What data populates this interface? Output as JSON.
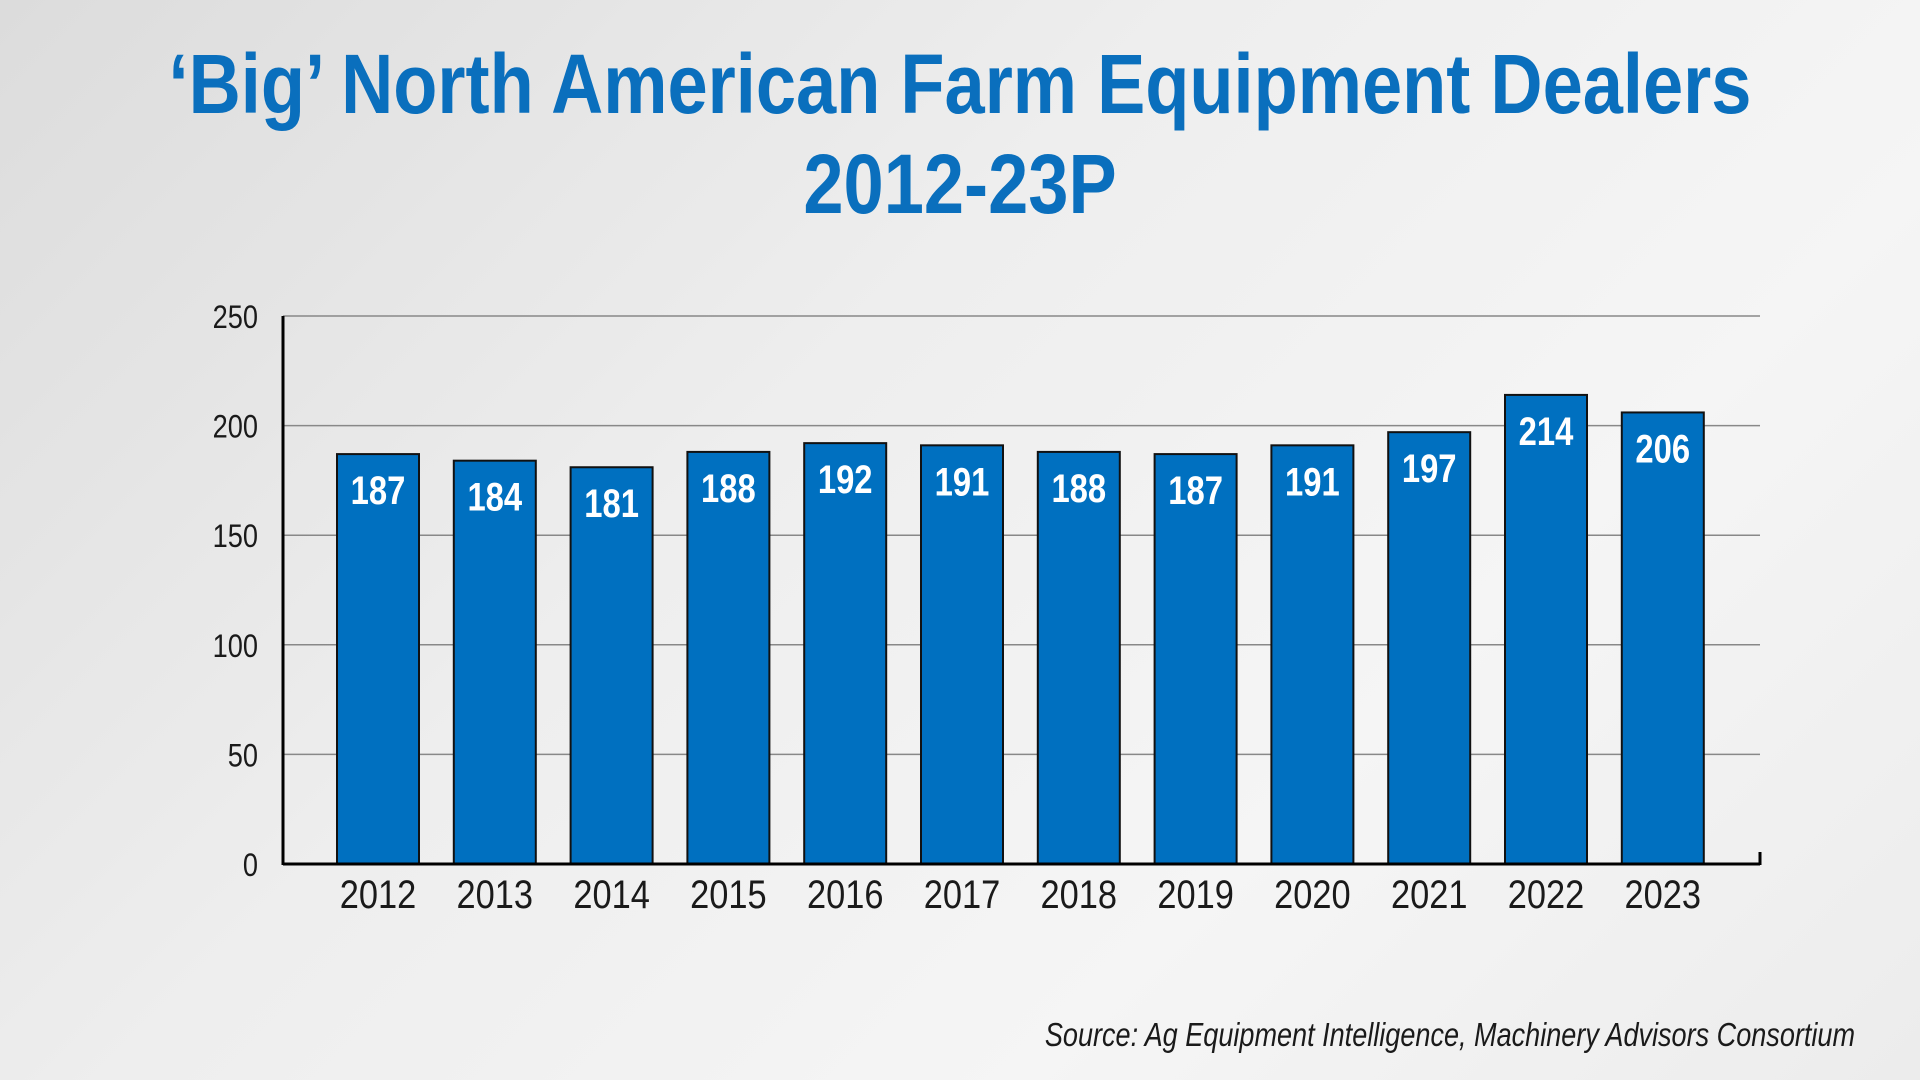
{
  "title": {
    "line1": "‘Big’ North American Farm Equipment Dealers",
    "line2": "2012-23P"
  },
  "source": "Source: Ag Equipment Intelligence, Machinery Advisors Consortium",
  "colors": {
    "title": "#0a6fbd",
    "bar": "#0070c0",
    "bar_outline": "#111111",
    "grid": "#888888",
    "axis": "#000000",
    "label_inside": "#ffffff",
    "tick_text": "#1a1a1a"
  },
  "chart_data": {
    "type": "bar",
    "title": "‘Big’ North American Farm Equipment Dealers 2012-23P",
    "categories": [
      "2012",
      "2013",
      "2014",
      "2015",
      "2016",
      "2017",
      "2018",
      "2019",
      "2020",
      "2021",
      "2022",
      "2023"
    ],
    "values": [
      187,
      184,
      181,
      188,
      192,
      191,
      188,
      187,
      191,
      197,
      214,
      206
    ],
    "ylim": [
      0,
      250
    ],
    "yticks": [
      0,
      50,
      100,
      150,
      200,
      250
    ],
    "xlabel": "",
    "ylabel": "",
    "grid": true,
    "data_labels": "inside-top"
  }
}
